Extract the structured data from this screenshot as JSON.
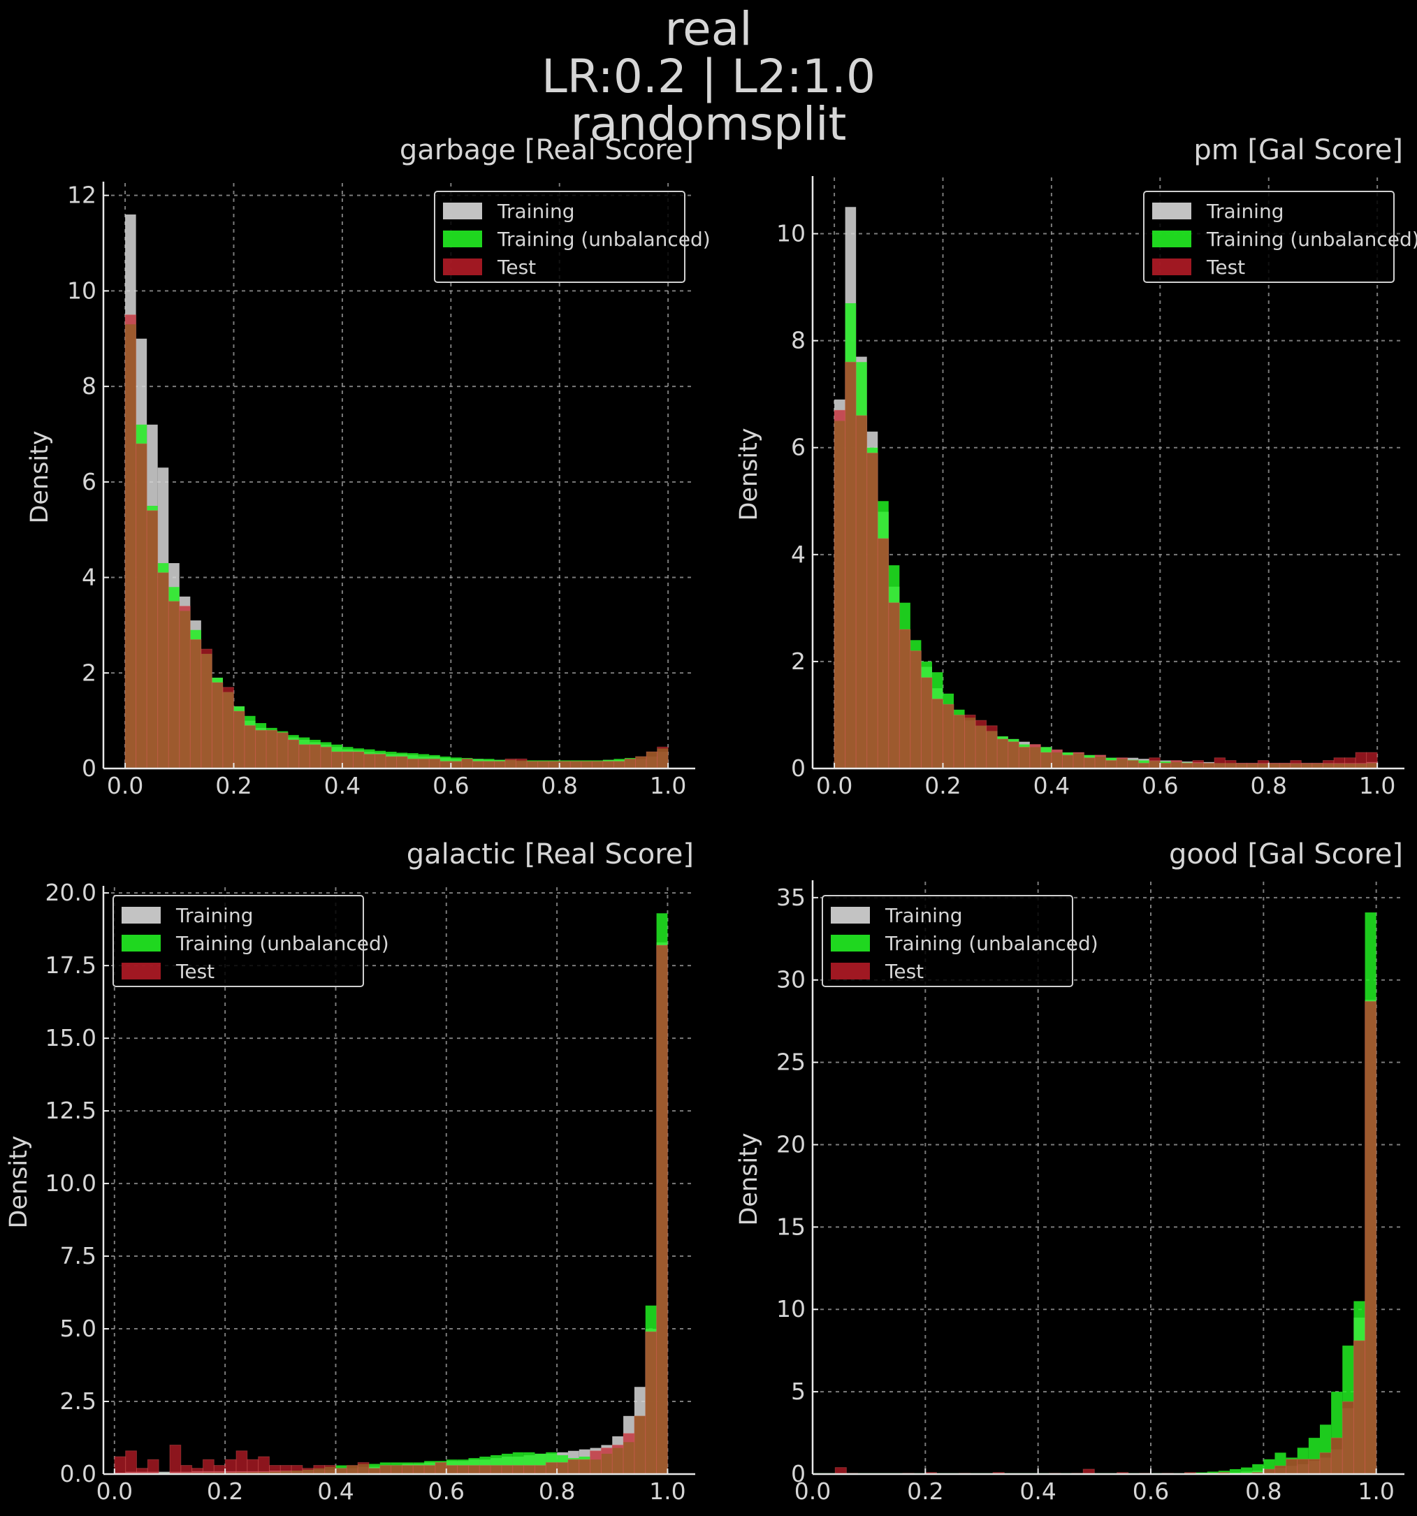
{
  "suptitle": [
    "real",
    "LR:0.2 | L2:1.0",
    "randomsplit"
  ],
  "colors": {
    "training": "#d8d8d8",
    "training_unbalanced": "#22ee22",
    "test": "#c81e2a",
    "background": "#000000",
    "axis": "#e8e8e8",
    "grid": "#9a9a9a",
    "text": "#d6d6d6"
  },
  "legend_labels": [
    "Training",
    "Training (unbalanced)",
    "Test"
  ],
  "chart_data": [
    {
      "type": "bar",
      "title": "garbage [Real Score]",
      "xlabel": "",
      "ylabel": "Density",
      "xlim": [
        -0.04,
        1.05
      ],
      "ylim": [
        0,
        12.2
      ],
      "xticks": [
        0.0,
        0.2,
        0.4,
        0.6,
        0.8,
        1.0
      ],
      "yticks": [
        0,
        2,
        4,
        6,
        8,
        10,
        12
      ],
      "ytick_labels": [
        "0",
        "2",
        "4",
        "6",
        "8",
        "10",
        "12"
      ],
      "grid": true,
      "legend_position": "upper right",
      "bin_edges_range": [
        0.0,
        1.0
      ],
      "bins": 50,
      "series": [
        {
          "name": "Training",
          "values": [
            11.6,
            9.0,
            7.2,
            6.3,
            4.3,
            3.6,
            3.1,
            2.4,
            1.9,
            1.6,
            1.3,
            1.0,
            0.85,
            0.8,
            0.75,
            0.65,
            0.6,
            0.55,
            0.5,
            0.45,
            0.4,
            0.38,
            0.35,
            0.33,
            0.3,
            0.3,
            0.28,
            0.25,
            0.25,
            0.22,
            0.2,
            0.2,
            0.2,
            0.18,
            0.18,
            0.18,
            0.15,
            0.15,
            0.15,
            0.15,
            0.15,
            0.15,
            0.15,
            0.15,
            0.18,
            0.18,
            0.2,
            0.2,
            0.25,
            0.35
          ]
        },
        {
          "name": "Training (unbalanced)",
          "values": [
            9.3,
            7.2,
            5.5,
            4.3,
            3.8,
            3.3,
            2.9,
            2.4,
            1.9,
            1.6,
            1.3,
            1.1,
            0.95,
            0.85,
            0.78,
            0.7,
            0.65,
            0.6,
            0.55,
            0.5,
            0.45,
            0.42,
            0.4,
            0.37,
            0.35,
            0.33,
            0.32,
            0.3,
            0.28,
            0.25,
            0.23,
            0.22,
            0.2,
            0.2,
            0.18,
            0.18,
            0.17,
            0.17,
            0.17,
            0.17,
            0.17,
            0.17,
            0.17,
            0.17,
            0.18,
            0.2,
            0.22,
            0.25,
            0.35,
            0.42
          ]
        },
        {
          "name": "Test",
          "values": [
            9.5,
            6.8,
            5.4,
            4.1,
            3.5,
            3.4,
            2.7,
            2.5,
            1.8,
            1.7,
            1.2,
            0.9,
            0.8,
            0.8,
            0.75,
            0.6,
            0.5,
            0.5,
            0.45,
            0.35,
            0.35,
            0.35,
            0.3,
            0.3,
            0.25,
            0.25,
            0.2,
            0.2,
            0.2,
            0.15,
            0.15,
            0.2,
            0.15,
            0.15,
            0.15,
            0.2,
            0.2,
            0.15,
            0.15,
            0.15,
            0.15,
            0.15,
            0.15,
            0.15,
            0.15,
            0.15,
            0.2,
            0.25,
            0.35,
            0.45
          ]
        }
      ]
    },
    {
      "type": "bar",
      "title": "pm [Gal Score]",
      "xlabel": "",
      "ylabel": "Density",
      "xlim": [
        -0.04,
        1.05
      ],
      "ylim": [
        0,
        11.0
      ],
      "xticks": [
        0.0,
        0.2,
        0.4,
        0.6,
        0.8,
        1.0
      ],
      "yticks": [
        0,
        2,
        4,
        6,
        8,
        10
      ],
      "ytick_labels": [
        "0",
        "2",
        "4",
        "6",
        "8",
        "10"
      ],
      "grid": true,
      "legend_position": "upper right",
      "bin_edges_range": [
        0.0,
        1.0
      ],
      "bins": 50,
      "series": [
        {
          "name": "Training",
          "values": [
            6.9,
            10.5,
            7.7,
            6.3,
            4.8,
            3.4,
            2.6,
            2.2,
            1.9,
            1.5,
            1.2,
            1.0,
            0.9,
            0.8,
            0.7,
            0.6,
            0.55,
            0.5,
            0.45,
            0.4,
            0.35,
            0.3,
            0.3,
            0.25,
            0.25,
            0.2,
            0.2,
            0.2,
            0.18,
            0.15,
            0.15,
            0.15,
            0.13,
            0.12,
            0.12,
            0.1,
            0.1,
            0.1,
            0.1,
            0.1,
            0.1,
            0.1,
            0.1,
            0.1,
            0.1,
            0.1,
            0.1,
            0.1,
            0.1,
            0.12
          ]
        },
        {
          "name": "Training (unbalanced)",
          "values": [
            6.5,
            8.7,
            7.6,
            6.0,
            5.0,
            3.8,
            3.1,
            2.4,
            2.0,
            1.8,
            1.4,
            1.1,
            0.95,
            0.8,
            0.7,
            0.6,
            0.55,
            0.45,
            0.4,
            0.4,
            0.3,
            0.3,
            0.28,
            0.25,
            0.22,
            0.2,
            0.18,
            0.16,
            0.15,
            0.14,
            0.13,
            0.12,
            0.11,
            0.1,
            0.1,
            0.1,
            0.1,
            0.09,
            0.09,
            0.09,
            0.09,
            0.09,
            0.09,
            0.09,
            0.09,
            0.09,
            0.09,
            0.09,
            0.09,
            0.1
          ]
        },
        {
          "name": "Test",
          "values": [
            6.7,
            7.6,
            6.6,
            5.9,
            4.3,
            3.1,
            2.6,
            2.2,
            1.7,
            1.3,
            1.2,
            1.0,
            1.0,
            0.9,
            0.8,
            0.55,
            0.5,
            0.4,
            0.45,
            0.3,
            0.35,
            0.25,
            0.3,
            0.2,
            0.25,
            0.15,
            0.2,
            0.15,
            0.1,
            0.2,
            0.1,
            0.15,
            0.1,
            0.15,
            0.1,
            0.2,
            0.15,
            0.1,
            0.1,
            0.15,
            0.1,
            0.1,
            0.15,
            0.1,
            0.1,
            0.15,
            0.2,
            0.2,
            0.3,
            0.3
          ]
        }
      ]
    },
    {
      "type": "bar",
      "title": "galactic [Real Score]",
      "xlabel": "",
      "ylabel": "Density",
      "xlim": [
        -0.02,
        1.05
      ],
      "ylim": [
        0,
        20.1
      ],
      "xticks": [
        0.0,
        0.2,
        0.4,
        0.6,
        0.8,
        1.0
      ],
      "yticks": [
        0,
        2.5,
        5,
        7.5,
        10,
        12.5,
        15,
        17.5,
        20
      ],
      "ytick_labels": [
        "0.0",
        "2.5",
        "5.0",
        "7.5",
        "10.0",
        "12.5",
        "15.0",
        "17.5",
        "20.0"
      ],
      "grid": true,
      "legend_position": "upper left",
      "bin_edges_range": [
        0.0,
        1.0
      ],
      "bins": 50,
      "series": [
        {
          "name": "Training",
          "values": [
            0.05,
            0.08,
            0.08,
            0.08,
            0.08,
            0.08,
            0.08,
            0.1,
            0.1,
            0.1,
            0.1,
            0.1,
            0.1,
            0.1,
            0.12,
            0.12,
            0.12,
            0.15,
            0.15,
            0.15,
            0.2,
            0.2,
            0.25,
            0.25,
            0.3,
            0.3,
            0.35,
            0.35,
            0.4,
            0.4,
            0.45,
            0.45,
            0.5,
            0.5,
            0.55,
            0.6,
            0.6,
            0.65,
            0.7,
            0.7,
            0.75,
            0.8,
            0.85,
            0.9,
            1.0,
            1.3,
            2.0,
            3.0,
            5.0,
            18.3
          ]
        },
        {
          "name": "Training (unbalanced)",
          "values": [
            0.02,
            0.02,
            0.03,
            0.03,
            0.03,
            0.03,
            0.04,
            0.04,
            0.05,
            0.05,
            0.05,
            0.06,
            0.06,
            0.07,
            0.08,
            0.1,
            0.12,
            0.15,
            0.2,
            0.25,
            0.3,
            0.3,
            0.35,
            0.35,
            0.4,
            0.4,
            0.4,
            0.4,
            0.45,
            0.45,
            0.5,
            0.5,
            0.55,
            0.6,
            0.65,
            0.7,
            0.75,
            0.75,
            0.7,
            0.75,
            0.65,
            0.55,
            0.6,
            0.5,
            0.7,
            0.9,
            1.1,
            2.0,
            5.8,
            19.3
          ]
        },
        {
          "name": "Test",
          "values": [
            0.6,
            0.8,
            0.2,
            0.5,
            0.0,
            1.0,
            0.3,
            0.2,
            0.5,
            0.3,
            0.5,
            0.8,
            0.5,
            0.6,
            0.3,
            0.3,
            0.3,
            0.2,
            0.3,
            0.3,
            0.2,
            0.3,
            0.4,
            0.2,
            0.3,
            0.3,
            0.3,
            0.3,
            0.3,
            0.4,
            0.3,
            0.3,
            0.3,
            0.3,
            0.3,
            0.3,
            0.3,
            0.3,
            0.3,
            0.4,
            0.4,
            0.5,
            0.5,
            0.8,
            0.9,
            1.0,
            1.4,
            2.0,
            4.9,
            18.2
          ]
        }
      ]
    },
    {
      "type": "bar",
      "title": "good [Gal Score]",
      "xlabel": "",
      "ylabel": "Density",
      "xlim": [
        0.0,
        1.05
      ],
      "ylim": [
        0,
        35.8
      ],
      "xticks": [
        0.0,
        0.2,
        0.4,
        0.6,
        0.8,
        1.0
      ],
      "yticks": [
        0,
        5,
        10,
        15,
        20,
        25,
        30,
        35
      ],
      "ytick_labels": [
        "0",
        "5",
        "10",
        "15",
        "20",
        "25",
        "30",
        "35"
      ],
      "grid": true,
      "legend_position": "upper left",
      "bin_edges_range": [
        0.0,
        1.0
      ],
      "bins": 50,
      "series": [
        {
          "name": "Training",
          "values": [
            0.05,
            0.05,
            0.05,
            0.05,
            0.05,
            0.05,
            0.05,
            0.05,
            0.05,
            0.05,
            0.05,
            0.05,
            0.05,
            0.05,
            0.05,
            0.05,
            0.05,
            0.05,
            0.05,
            0.05,
            0.05,
            0.05,
            0.05,
            0.05,
            0.05,
            0.05,
            0.05,
            0.05,
            0.05,
            0.05,
            0.05,
            0.05,
            0.05,
            0.05,
            0.08,
            0.08,
            0.1,
            0.1,
            0.15,
            0.2,
            0.3,
            0.4,
            0.5,
            0.6,
            0.8,
            1.0,
            1.5,
            4.0,
            9.5,
            28.8
          ]
        },
        {
          "name": "Training (unbalanced)",
          "values": [
            0.05,
            0.05,
            0.05,
            0.05,
            0.05,
            0.05,
            0.05,
            0.05,
            0.05,
            0.05,
            0.05,
            0.05,
            0.05,
            0.05,
            0.05,
            0.05,
            0.05,
            0.05,
            0.05,
            0.05,
            0.05,
            0.05,
            0.05,
            0.05,
            0.05,
            0.05,
            0.05,
            0.05,
            0.05,
            0.05,
            0.05,
            0.05,
            0.05,
            0.08,
            0.1,
            0.15,
            0.2,
            0.3,
            0.4,
            0.6,
            0.9,
            1.3,
            1.0,
            1.6,
            2.2,
            3.0,
            5.0,
            7.8,
            10.5,
            34.1
          ]
        },
        {
          "name": "Test",
          "values": [
            0.0,
            0.0,
            0.4,
            0.05,
            0.0,
            0.0,
            0.0,
            0.0,
            0.05,
            0.0,
            0.1,
            0.0,
            0.0,
            0.05,
            0.0,
            0.0,
            0.1,
            0.0,
            0.0,
            0.0,
            0.0,
            0.05,
            0.0,
            0.05,
            0.3,
            0.0,
            0.0,
            0.1,
            0.0,
            0.05,
            0.0,
            0.05,
            0.0,
            0.1,
            0.0,
            0.05,
            0.1,
            0.0,
            0.05,
            0.1,
            0.3,
            0.5,
            0.9,
            0.9,
            0.9,
            1.3,
            2.2,
            4.4,
            8.1,
            28.7
          ]
        }
      ]
    }
  ]
}
